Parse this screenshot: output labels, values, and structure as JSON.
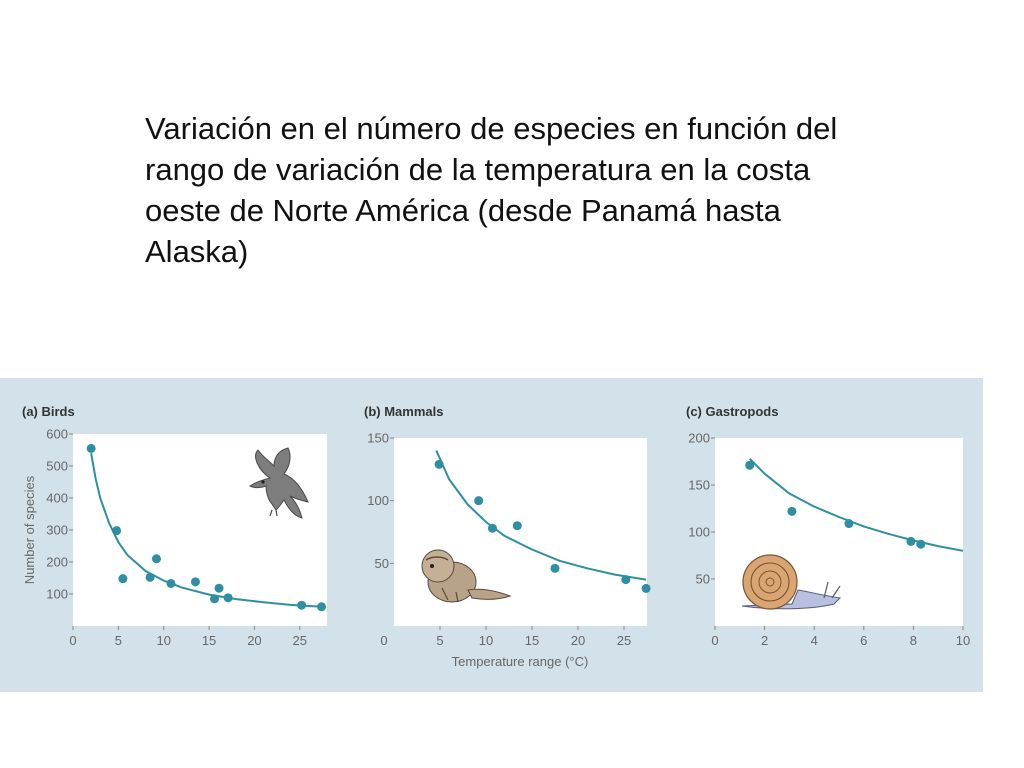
{
  "heading": {
    "lines": [
      "Variación en el número de especies en función del",
      "rango de variación de la temperatura en la costa",
      "oeste de Norte América (desde Panamá hasta",
      "Alaska)"
    ]
  },
  "figure": {
    "background_color": "#d3e2ea",
    "plot_background": "#ffffff",
    "point_color": "#2e8fa3",
    "curve_color": "#2e8fa3",
    "shared_xlabel": "Temperature range (°C)",
    "shared_ylabel": "Number of species"
  },
  "chart_data": [
    {
      "type": "scatter",
      "title": "(a) Birds",
      "xlim": [
        0,
        28
      ],
      "ylim": [
        0,
        600
      ],
      "xticks": [
        0,
        5,
        10,
        15,
        20,
        25
      ],
      "yticks": [
        100,
        200,
        300,
        400,
        500,
        600
      ],
      "xlabel": "",
      "ylabel": "Number of species",
      "points": [
        {
          "x": 2,
          "y": 555
        },
        {
          "x": 4.8,
          "y": 298
        },
        {
          "x": 5.5,
          "y": 148
        },
        {
          "x": 8.5,
          "y": 152
        },
        {
          "x": 9.2,
          "y": 210
        },
        {
          "x": 10.8,
          "y": 133
        },
        {
          "x": 13.5,
          "y": 138
        },
        {
          "x": 15.6,
          "y": 85
        },
        {
          "x": 16.1,
          "y": 118
        },
        {
          "x": 17.1,
          "y": 88
        },
        {
          "x": 25.2,
          "y": 65
        },
        {
          "x": 27.4,
          "y": 60
        }
      ],
      "trend": [
        {
          "x": 2.0,
          "y": 540
        },
        {
          "x": 2.5,
          "y": 460
        },
        {
          "x": 3,
          "y": 400
        },
        {
          "x": 4,
          "y": 320
        },
        {
          "x": 5,
          "y": 262
        },
        {
          "x": 6,
          "y": 222
        },
        {
          "x": 8,
          "y": 172
        },
        {
          "x": 10,
          "y": 142
        },
        {
          "x": 12,
          "y": 120
        },
        {
          "x": 15,
          "y": 98
        },
        {
          "x": 18,
          "y": 84
        },
        {
          "x": 21,
          "y": 74
        },
        {
          "x": 24,
          "y": 66
        },
        {
          "x": 27.4,
          "y": 60
        }
      ],
      "icon": "bird-icon"
    },
    {
      "type": "scatter",
      "title": "(b) Mammals",
      "xlim": [
        0,
        27.5
      ],
      "ylim": [
        0,
        150
      ],
      "xticks": [
        5,
        10,
        15,
        20,
        25
      ],
      "yticks": [
        50,
        100,
        150
      ],
      "xlabel": "Temperature range (°C)",
      "ylabel": "",
      "points": [
        {
          "x": 4.9,
          "y": 129
        },
        {
          "x": 9.2,
          "y": 100
        },
        {
          "x": 10.7,
          "y": 78
        },
        {
          "x": 13.4,
          "y": 80
        },
        {
          "x": 17.5,
          "y": 46
        },
        {
          "x": 25.2,
          "y": 37
        },
        {
          "x": 27.4,
          "y": 30
        }
      ],
      "trend": [
        {
          "x": 4.6,
          "y": 140
        },
        {
          "x": 6,
          "y": 117
        },
        {
          "x": 8,
          "y": 97
        },
        {
          "x": 10,
          "y": 83
        },
        {
          "x": 12,
          "y": 72
        },
        {
          "x": 15,
          "y": 61
        },
        {
          "x": 18,
          "y": 52
        },
        {
          "x": 21,
          "y": 46
        },
        {
          "x": 24,
          "y": 41
        },
        {
          "x": 27.4,
          "y": 37
        }
      ],
      "icon": "chipmunk-icon"
    },
    {
      "type": "scatter",
      "title": "(c) Gastropods",
      "xlim": [
        0,
        10
      ],
      "ylim": [
        0,
        200
      ],
      "xticks": [
        0,
        2,
        4,
        6,
        8,
        10
      ],
      "yticks": [
        50,
        100,
        150,
        200
      ],
      "xlabel": "",
      "ylabel": "",
      "points": [
        {
          "x": 1.4,
          "y": 171
        },
        {
          "x": 3.1,
          "y": 122
        },
        {
          "x": 5.4,
          "y": 109
        },
        {
          "x": 7.9,
          "y": 90
        },
        {
          "x": 8.3,
          "y": 87
        }
      ],
      "trend": [
        {
          "x": 1.4,
          "y": 178
        },
        {
          "x": 2,
          "y": 162
        },
        {
          "x": 3,
          "y": 141
        },
        {
          "x": 4,
          "y": 127
        },
        {
          "x": 5,
          "y": 116
        },
        {
          "x": 6,
          "y": 106
        },
        {
          "x": 7,
          "y": 98
        },
        {
          "x": 8,
          "y": 91
        },
        {
          "x": 9,
          "y": 85
        },
        {
          "x": 10,
          "y": 80
        }
      ],
      "icon": "snail-icon"
    }
  ]
}
